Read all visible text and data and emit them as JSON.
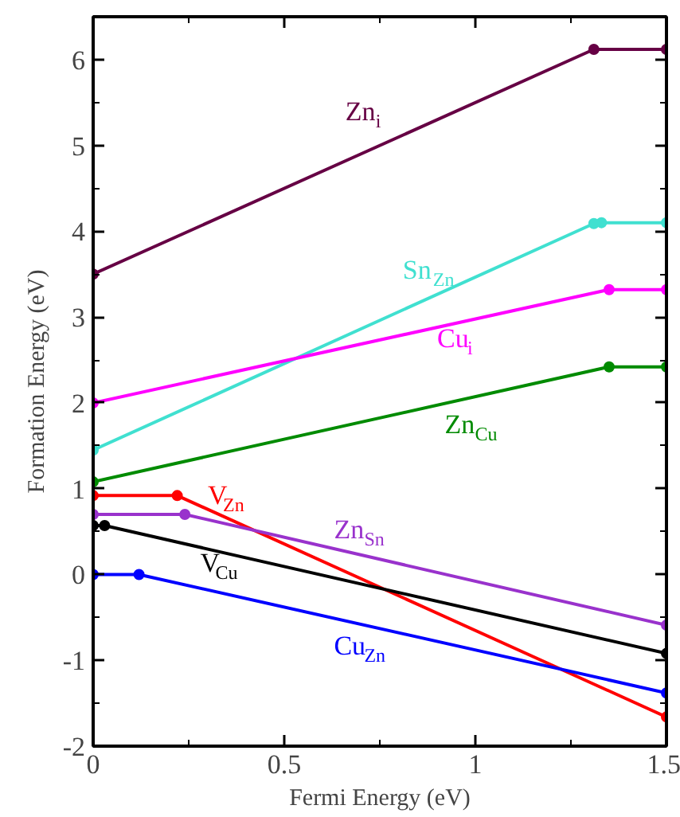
{
  "chart_data": {
    "type": "line",
    "xlabel": "Fermi Energy (eV)",
    "ylabel": "Formation Energy (eV)",
    "xlim": [
      0,
      1.5
    ],
    "ylim": [
      -2,
      6.5
    ],
    "xticks": [
      0,
      0.5,
      1,
      1.5
    ],
    "yticks": [
      -2,
      -1,
      0,
      1,
      2,
      3,
      4,
      5,
      6
    ],
    "marker": "circle",
    "line_style": "solid",
    "grid": false,
    "series": [
      {
        "name": "Zn$_{i}$",
        "color": "#660044",
        "x": [
          0,
          1.31,
          1.5
        ],
        "values": [
          3.5,
          6.12,
          6.12
        ]
      },
      {
        "name": "Sn$_{Zn}$",
        "color": "#40e0d0",
        "x": [
          0,
          1.31,
          1.33,
          1.5
        ],
        "values": [
          1.45,
          4.09,
          4.1,
          4.1
        ]
      },
      {
        "name": "Cu$_{i}$",
        "color": "#ff00ff",
        "x": [
          0,
          1.35,
          1.5
        ],
        "values": [
          2.0,
          3.32,
          3.32
        ]
      },
      {
        "name": "Zn$_{Cu}$",
        "color": "#008b00",
        "x": [
          0,
          1.35,
          1.5
        ],
        "values": [
          1.08,
          2.42,
          2.42
        ]
      },
      {
        "name": "V$_{Zn}$",
        "color": "#ff0000",
        "x": [
          0,
          0.22,
          1.5
        ],
        "values": [
          0.92,
          0.92,
          -1.66
        ]
      },
      {
        "name": "Zn$_{Sn}$",
        "color": "#9932cc",
        "x": [
          0,
          0.24,
          1.5
        ],
        "values": [
          0.7,
          0.7,
          -0.59
        ]
      },
      {
        "name": "V$_{Cu}$",
        "color": "#000000",
        "x": [
          0,
          0.03,
          1.5
        ],
        "values": [
          0.57,
          0.57,
          -0.92
        ]
      },
      {
        "name": "Cu$_{Zn}$",
        "color": "#0000ff",
        "x": [
          0,
          0.12,
          1.5
        ],
        "values": [
          0,
          0,
          -1.38
        ]
      }
    ]
  }
}
